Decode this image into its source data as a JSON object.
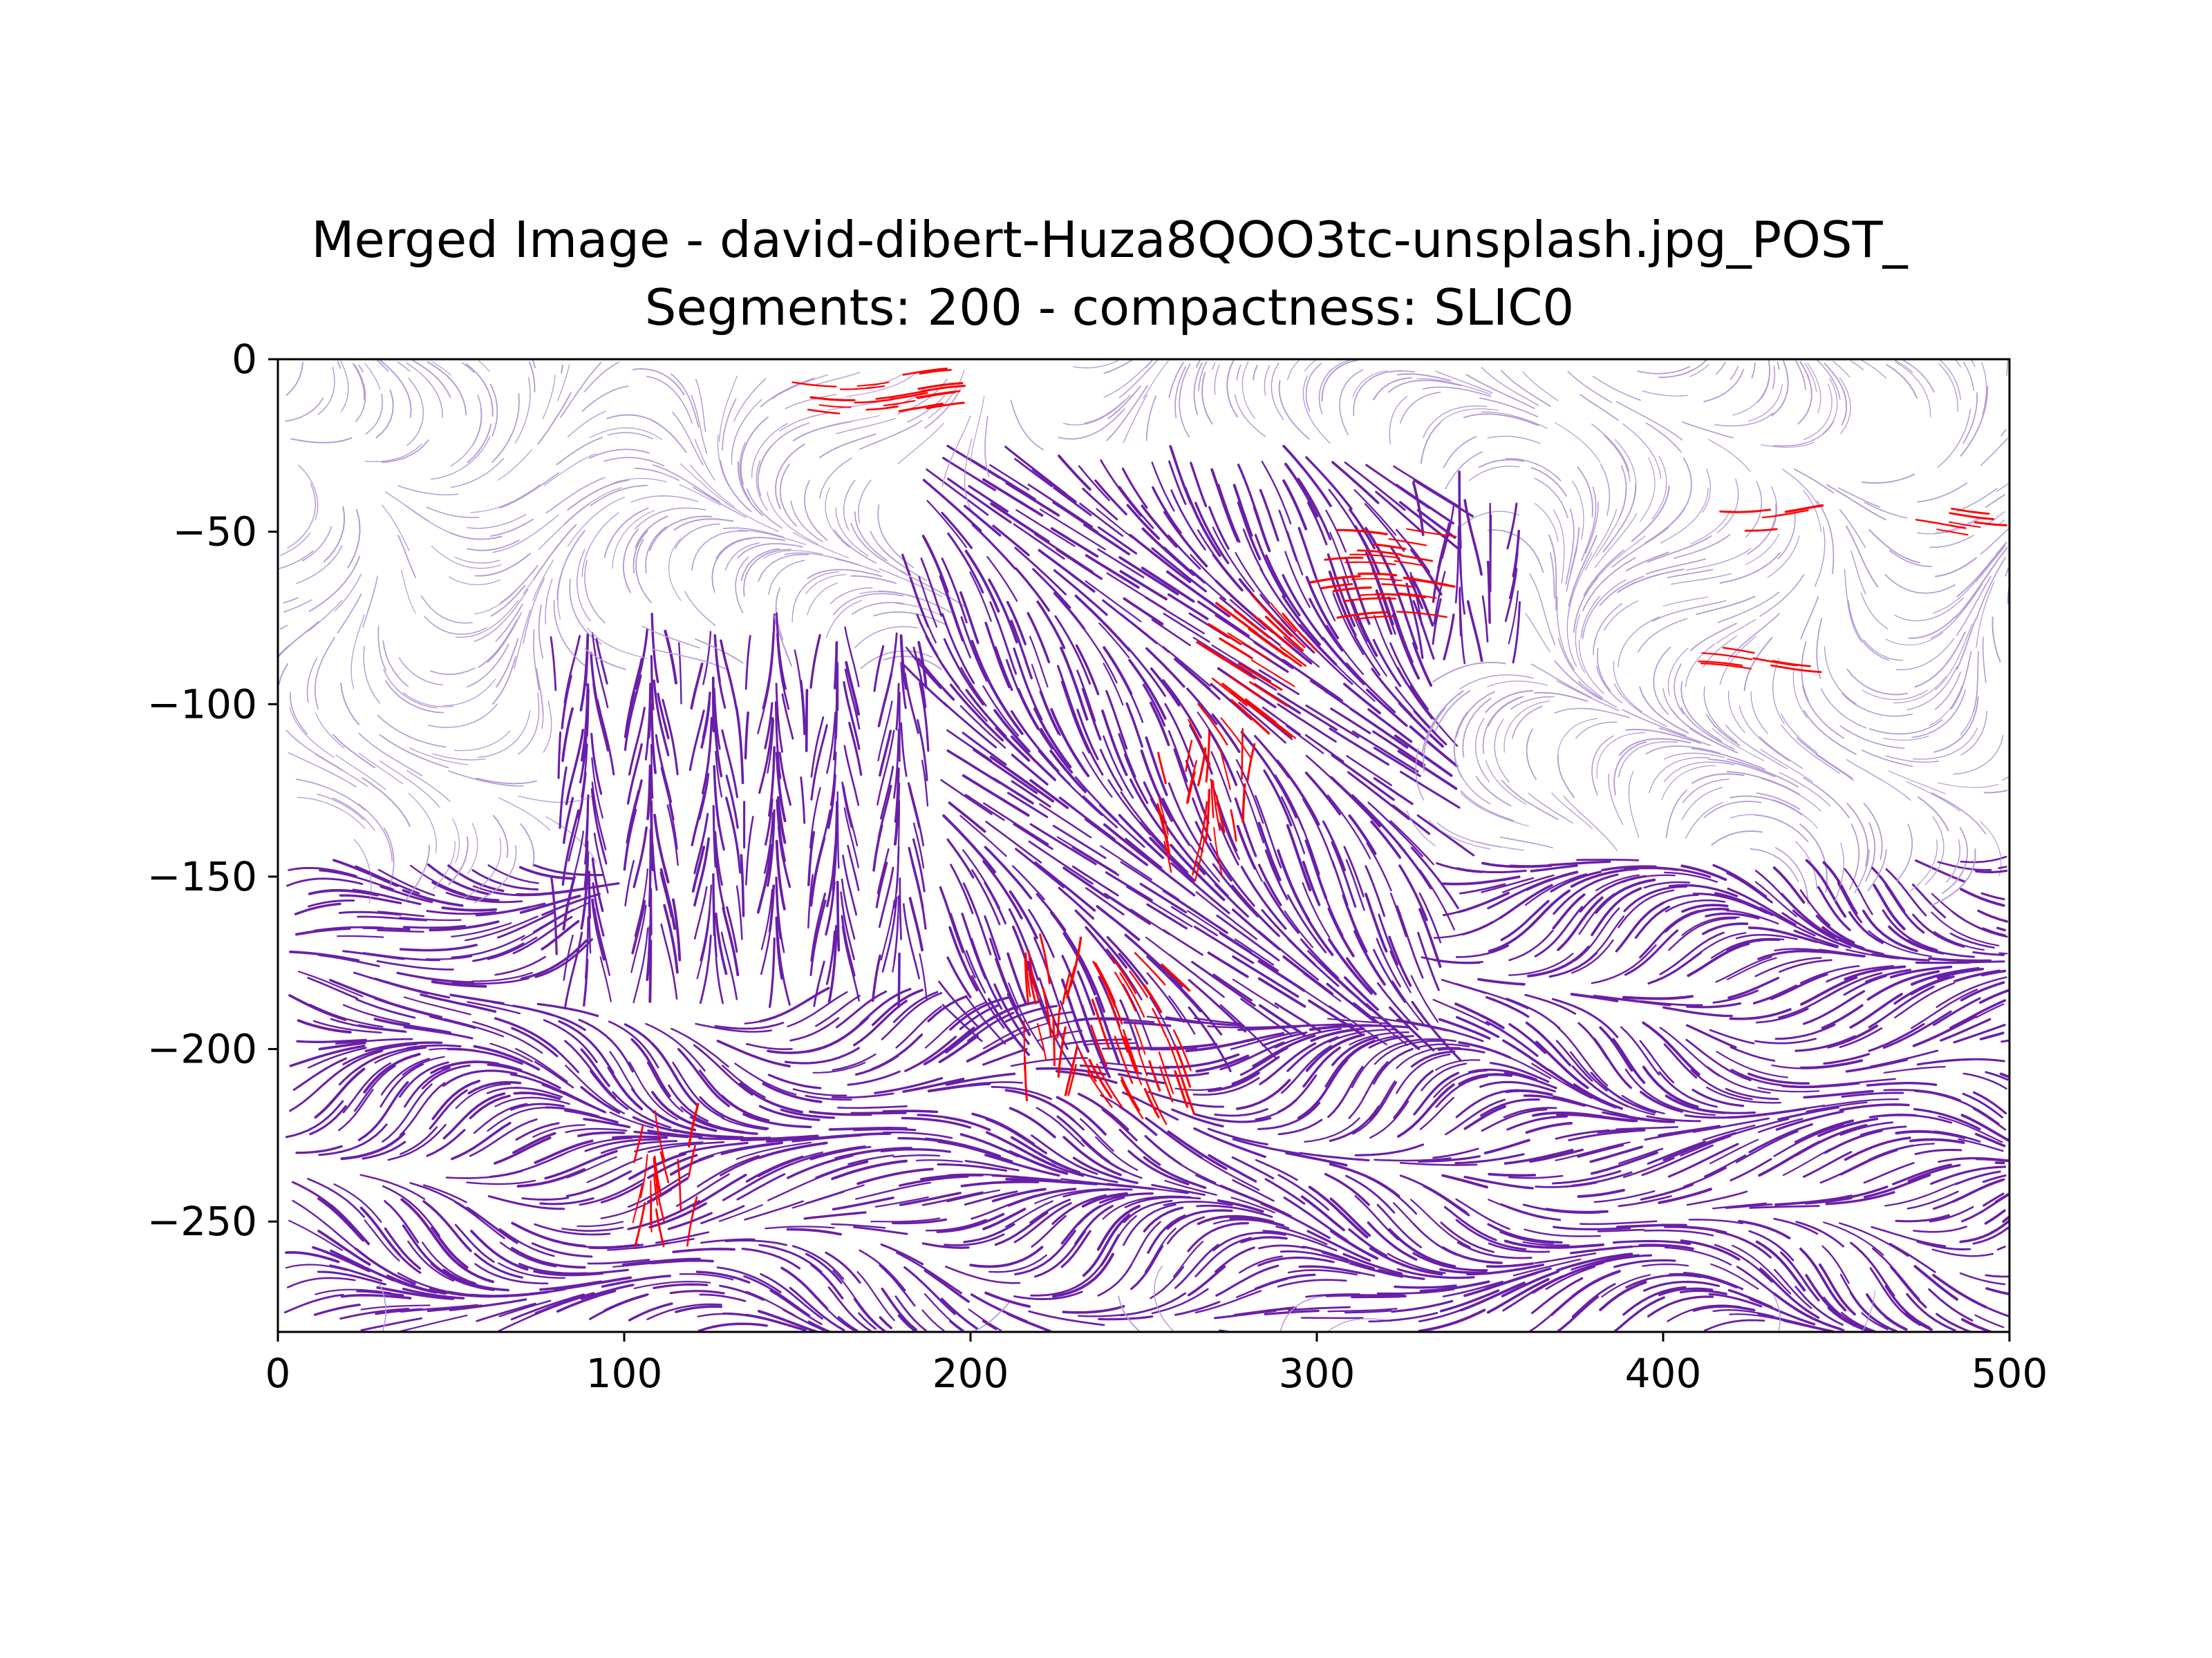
{
  "chart_data": {
    "type": "streamplot",
    "title": "Merged Image - david-dibert-Huza8QOO3tc-unsplash.jpg_POST_",
    "subtitle": "Segments: 200 - compactness: SLIC0",
    "xlim": [
      0,
      500
    ],
    "ylim": [
      -282,
      0
    ],
    "x_ticks": [
      0,
      100,
      200,
      300,
      400,
      500
    ],
    "y_ticks": [
      0,
      -50,
      -100,
      -150,
      -200,
      -250
    ],
    "x_tick_labels": [
      "0",
      "100",
      "200",
      "300",
      "400",
      "500"
    ],
    "y_tick_labels": [
      "0",
      "−50",
      "−100",
      "−150",
      "−200",
      "−250"
    ],
    "grid": false,
    "legend": "none",
    "colors": {
      "dark": "#6a1fa8",
      "light": "#b59ad6",
      "highlight": "#ff0000"
    },
    "regions": [
      {
        "x": [
          0,
          500
        ],
        "y": [
          -145,
          -282
        ],
        "strength": "dark",
        "pattern": "mixed"
      },
      {
        "x": [
          80,
          190
        ],
        "y": [
          -90,
          -190
        ],
        "strength": "dark",
        "pattern": "vertical"
      },
      {
        "x": [
          180,
          330
        ],
        "y": [
          -25,
          -190
        ],
        "strength": "dark",
        "pattern": "diagonal"
      },
      {
        "x": [
          320,
          360
        ],
        "y": [
          -50,
          -90
        ],
        "strength": "dark",
        "pattern": "vertical"
      },
      {
        "x": [
          0,
          500
        ],
        "y": [
          0,
          -150
        ],
        "strength": "light",
        "pattern": "swirl"
      }
    ],
    "highlights": [
      {
        "x": [
          140,
          190
        ],
        "y": [
          -2,
          -16
        ],
        "pattern": "horizontal"
      },
      {
        "x": [
          296,
          326
        ],
        "y": [
          -48,
          -78
        ],
        "pattern": "horizontal"
      },
      {
        "x": [
          262,
          292
        ],
        "y": [
          -68,
          -105
        ],
        "pattern": "diagonal"
      },
      {
        "x": [
          256,
          280
        ],
        "y": [
          -118,
          -152
        ],
        "pattern": "vertical"
      },
      {
        "x": [
          215,
          232
        ],
        "y": [
          -180,
          -215
        ],
        "pattern": "vertical"
      },
      {
        "x": [
          230,
          262
        ],
        "y": [
          -172,
          -212
        ],
        "pattern": "diagonal"
      },
      {
        "x": [
          102,
          120
        ],
        "y": [
          -225,
          -258
        ],
        "pattern": "vertical"
      },
      {
        "x": [
          410,
          440
        ],
        "y": [
          -82,
          -90
        ],
        "pattern": "horizontal"
      },
      {
        "x": [
          415,
          445
        ],
        "y": [
          -43,
          -50
        ],
        "pattern": "horizontal"
      },
      {
        "x": [
          470,
          495
        ],
        "y": [
          -42,
          -50
        ],
        "pattern": "horizontal"
      }
    ]
  }
}
